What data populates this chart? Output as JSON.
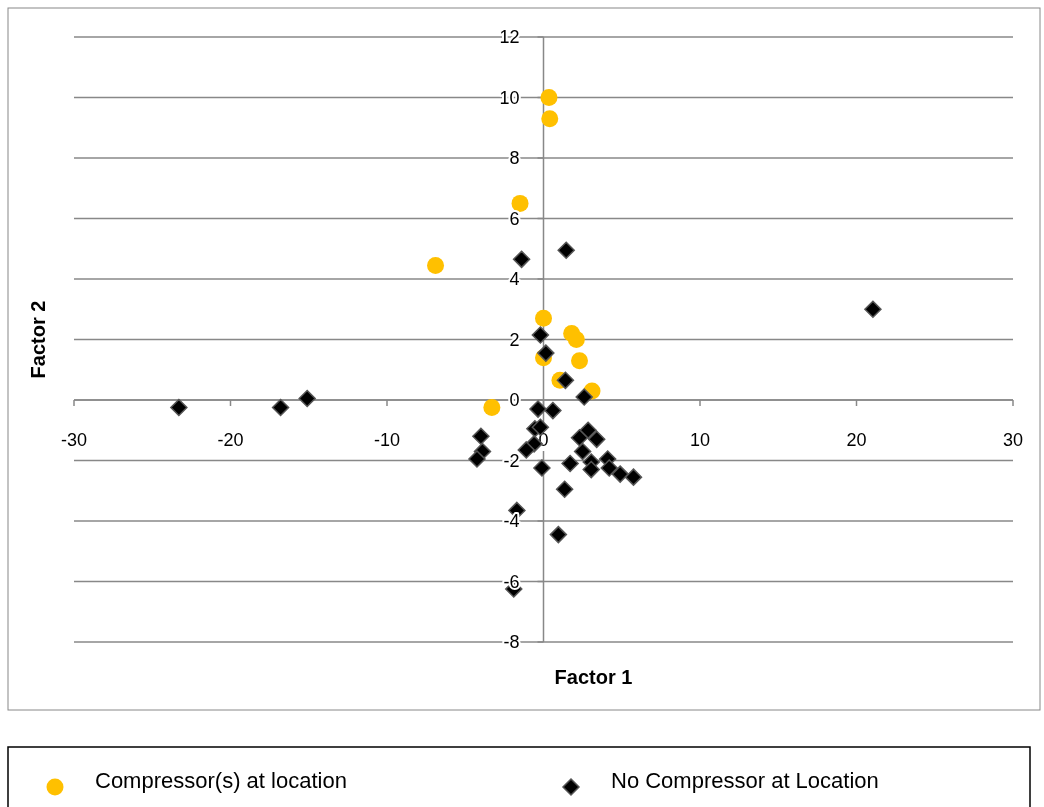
{
  "chart_data": {
    "type": "scatter",
    "xlabel": "Factor 1",
    "ylabel": "Factor 2",
    "xlim": [
      -30,
      30
    ],
    "ylim": [
      -8,
      12
    ],
    "xticks": [
      -30,
      -20,
      -10,
      0,
      10,
      20,
      30
    ],
    "yticks": [
      -8,
      -6,
      -4,
      -2,
      0,
      2,
      4,
      6,
      8,
      10,
      12
    ],
    "grid": "y",
    "legend": "bottom",
    "series": [
      {
        "name": "Compressor(s) at location",
        "color": "#ffc000",
        "marker": "circle",
        "x": [
          0.35,
          0.4,
          -1.5,
          -6.9,
          0.0,
          1.8,
          2.1,
          2.3,
          0.0,
          1.05,
          3.1,
          -3.3
        ],
        "values": [
          10.0,
          9.3,
          6.5,
          4.45,
          2.7,
          2.2,
          2.0,
          1.3,
          1.4,
          0.65,
          0.3,
          -0.25
        ]
      },
      {
        "name": "No Compressor at Location",
        "color": "#000000",
        "marker": "diamond",
        "x": [
          -23.3,
          -16.8,
          -15.1,
          -1.4,
          1.45,
          21.05,
          -0.2,
          0.15,
          1.4,
          2.6,
          -0.35,
          0.6,
          -0.55,
          -0.2,
          -0.6,
          -1.1,
          -4.0,
          -3.9,
          -4.25,
          -0.1,
          1.7,
          2.85,
          2.3,
          3.4,
          2.5,
          3.05,
          3.05,
          4.1,
          4.2,
          4.9,
          5.75,
          1.35,
          -1.7,
          0.95,
          -1.9
        ],
        "values": [
          -0.25,
          -0.25,
          0.05,
          4.65,
          4.95,
          3.0,
          2.15,
          1.55,
          0.65,
          0.1,
          -0.3,
          -0.35,
          -0.95,
          -0.9,
          -1.45,
          -1.65,
          -1.2,
          -1.7,
          -1.95,
          -2.25,
          -2.1,
          -1.0,
          -1.25,
          -1.3,
          -1.7,
          -2.05,
          -2.3,
          -1.95,
          -2.25,
          -2.45,
          -2.55,
          -2.95,
          -3.65,
          -4.45,
          -6.25
        ]
      }
    ]
  }
}
